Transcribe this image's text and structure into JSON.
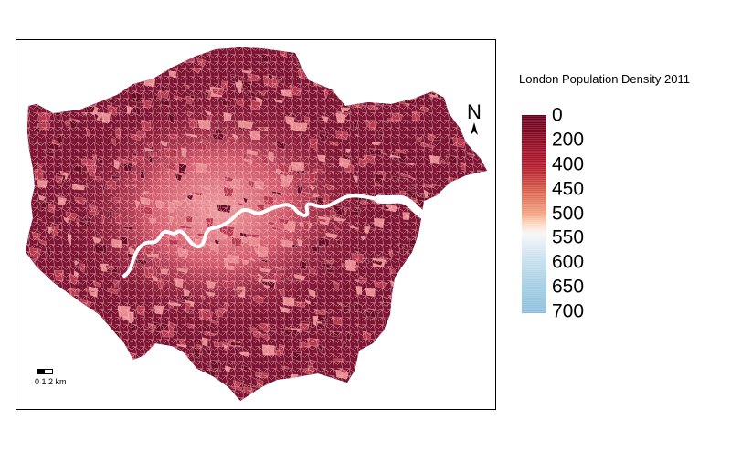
{
  "map": {
    "title": "London Population Density 2011",
    "north_label": "N",
    "scale_label": "0 1 2 km",
    "legend": {
      "labels": [
        "0",
        "200",
        "400",
        "450",
        "500",
        "550",
        "600",
        "650",
        "700"
      ],
      "colors": [
        "#67001f",
        "#b2182b",
        "#d6604d",
        "#f4a582",
        "#f7f7f7",
        "#d1e5f0",
        "#92c5de",
        "#6ea8d0"
      ]
    },
    "colors": {
      "fill_dark": "#6a0a24",
      "fill_mid": "#b8384f",
      "fill_light": "#e9898f",
      "boundary": "#f7c7c9",
      "river": "#ffffff"
    }
  }
}
